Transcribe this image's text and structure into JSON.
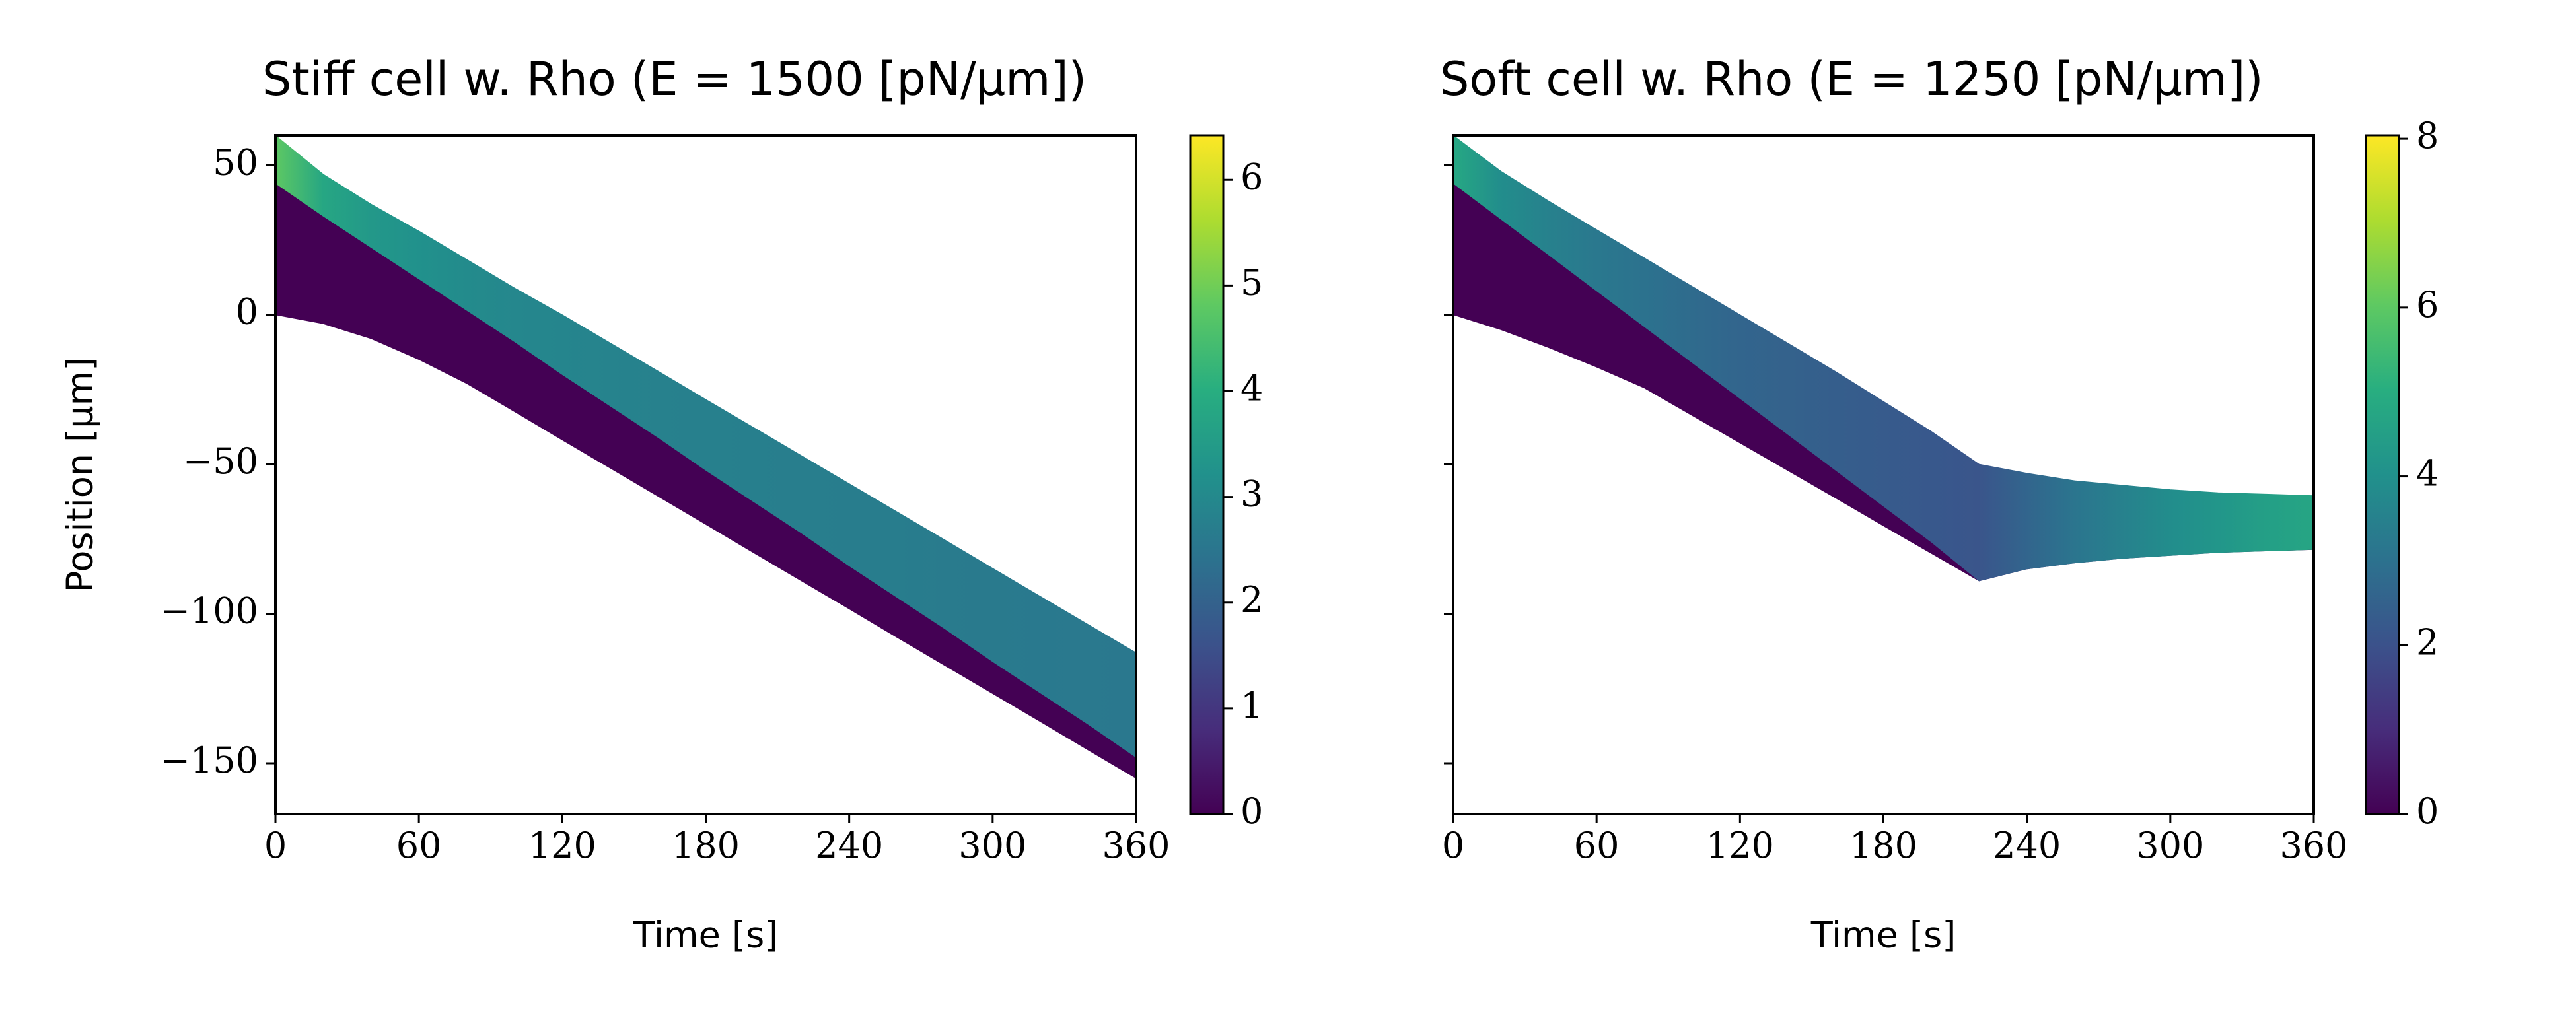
{
  "chart_data": [
    {
      "type": "band",
      "title": "Stiff cell w. Rho (E = 1500 [pN/μm])",
      "xlabel": "Time [s]",
      "ylabel": "Position [μm]",
      "x": [
        0,
        20,
        40,
        60,
        80,
        100,
        120,
        140,
        160,
        180,
        200,
        220,
        240,
        260,
        280,
        300,
        320,
        340,
        360
      ],
      "front": [
        60,
        47,
        37,
        28,
        18.5,
        9,
        0,
        -9.4,
        -18.8,
        -28.3,
        -37.7,
        -47.1,
        -56.5,
        -65.9,
        -75.3,
        -84.8,
        -94.2,
        -103.6,
        -113
      ],
      "interface": [
        44,
        33,
        22.5,
        12,
        1.5,
        -9,
        -20,
        -30.5,
        -41,
        -52,
        -62.5,
        -73,
        -84,
        -94.5,
        -105,
        -116,
        -126.5,
        -137,
        -148
      ],
      "rear": [
        0,
        -3,
        -8,
        -15,
        -23,
        -32.4,
        -41.9,
        -51.3,
        -60.7,
        -70.1,
        -79.6,
        -89,
        -98.4,
        -107.9,
        -117.3,
        -126.7,
        -136.1,
        -145.6,
        -155
      ],
      "rho": [
        4.8,
        3.8,
        3.4,
        3.2,
        3.05,
        2.95,
        2.9,
        2.85,
        2.8,
        2.78,
        2.75,
        2.72,
        2.7,
        2.68,
        2.65,
        2.62,
        2.6,
        2.58,
        2.55
      ],
      "xlim": [
        0,
        360
      ],
      "xticks": [
        0,
        60,
        120,
        180,
        240,
        300,
        360
      ],
      "ylim": [
        -167,
        60
      ],
      "yticks": [
        50,
        0,
        {
          "value": -50,
          "label": "−50"
        },
        {
          "value": -100,
          "label": "−100"
        },
        {
          "value": -150,
          "label": "−150"
        }
      ],
      "ytick_labels": true,
      "colorbar": {
        "colormap": "viridis",
        "lim": [
          0,
          6.42
        ],
        "ticks": [
          0,
          1,
          2,
          3,
          4,
          5,
          6
        ]
      }
    },
    {
      "type": "band",
      "title": "Soft cell w. Rho (E = 1250 [pN/μm])",
      "xlabel": "Time [s]",
      "x": [
        0,
        20,
        40,
        60,
        80,
        100,
        120,
        140,
        160,
        180,
        200,
        220,
        240,
        260,
        280,
        300,
        320,
        340,
        360
      ],
      "front": [
        60,
        48,
        38,
        28.5,
        19,
        9.5,
        0,
        -9.5,
        -19,
        -29,
        -39,
        -50,
        -53,
        -55.5,
        -57,
        -58.5,
        -59.5,
        -60,
        -60.5
      ],
      "interface": [
        44,
        32,
        20,
        8,
        -4,
        -16,
        -28,
        -40,
        -52,
        -64,
        -76,
        -89,
        -85,
        -83,
        -81.5,
        -80.5,
        -79.5,
        -79,
        -78.5
      ],
      "rear": [
        0,
        -5,
        -11,
        -17.5,
        -24.5,
        -33.7,
        -42.9,
        -52.1,
        -61.3,
        -70.6,
        -79.8,
        -89,
        -85,
        -83,
        -81.5,
        -80.5,
        -79.5,
        -79,
        -78.5
      ],
      "rho": [
        4.8,
        3.9,
        3.5,
        3.2,
        3.0,
        2.8,
        2.6,
        2.5,
        2.4,
        2.3,
        2.2,
        2.1,
        2.6,
        3.1,
        3.5,
        3.9,
        4.2,
        4.5,
        4.7
      ],
      "xlim": [
        0,
        360
      ],
      "xticks": [
        0,
        60,
        120,
        180,
        240,
        300,
        360
      ],
      "ylim": [
        -167,
        60
      ],
      "yticks": [
        50,
        0,
        {
          "value": -50,
          "label": "−50"
        },
        {
          "value": -100,
          "label": "−100"
        },
        {
          "value": -150,
          "label": "−150"
        }
      ],
      "ytick_labels": false,
      "colorbar": {
        "colormap": "viridis",
        "lim": [
          0,
          8.04
        ],
        "ticks": [
          0,
          2,
          4,
          6,
          8
        ]
      }
    }
  ]
}
